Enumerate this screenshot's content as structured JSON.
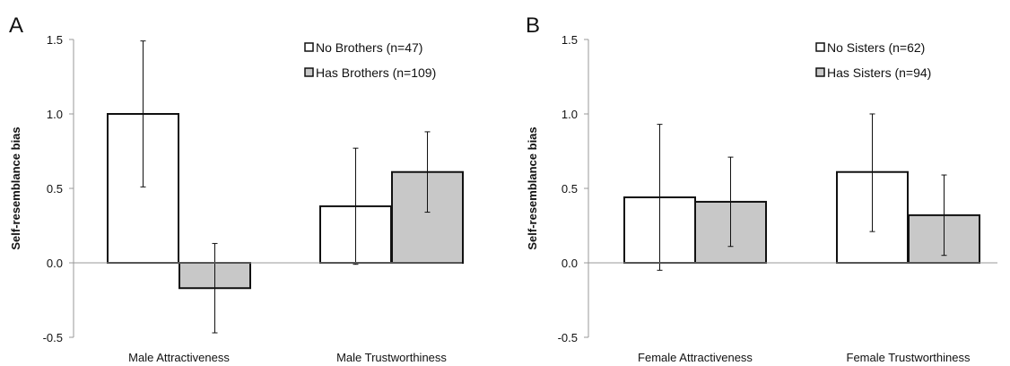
{
  "chart_data": [
    {
      "type": "bar",
      "panel_label": "A",
      "ylabel": "Self-resemblance bias",
      "ylim": [
        -0.5,
        1.5
      ],
      "yticks": [
        "-0.5",
        "0.0",
        "0.5",
        "1.0",
        "1.5"
      ],
      "categories": [
        "Male Attractiveness",
        "Male Trustworthiness"
      ],
      "series": [
        {
          "name": "No Brothers (n=47)",
          "color": "#ffffff",
          "values": [
            1.0,
            0.38
          ],
          "err_low": [
            0.51,
            -0.01
          ],
          "err_high": [
            1.49,
            0.77
          ]
        },
        {
          "name": "Has Brothers (n=109)",
          "color": "#c8c8c8",
          "values": [
            -0.17,
            0.61
          ],
          "err_low": [
            -0.47,
            0.34
          ],
          "err_high": [
            0.13,
            0.88
          ]
        }
      ],
      "legend_position": "top-right",
      "grid": false
    },
    {
      "type": "bar",
      "panel_label": "B",
      "ylabel": "Self-resemblance bias",
      "ylim": [
        -0.5,
        1.5
      ],
      "yticks": [
        "-0.5",
        "0.0",
        "0.5",
        "1.0",
        "1.5"
      ],
      "categories": [
        "Female Attractiveness",
        "Female Trustworthiness"
      ],
      "series": [
        {
          "name": "No Sisters (n=62)",
          "color": "#ffffff",
          "values": [
            0.44,
            0.61
          ],
          "err_low": [
            -0.05,
            0.21
          ],
          "err_high": [
            0.93,
            1.0
          ]
        },
        {
          "name": "Has Sisters (n=94)",
          "color": "#c8c8c8",
          "values": [
            0.41,
            0.32
          ],
          "err_low": [
            0.11,
            0.05
          ],
          "err_high": [
            0.71,
            0.59
          ]
        }
      ],
      "legend_position": "top-right",
      "grid": false
    }
  ]
}
